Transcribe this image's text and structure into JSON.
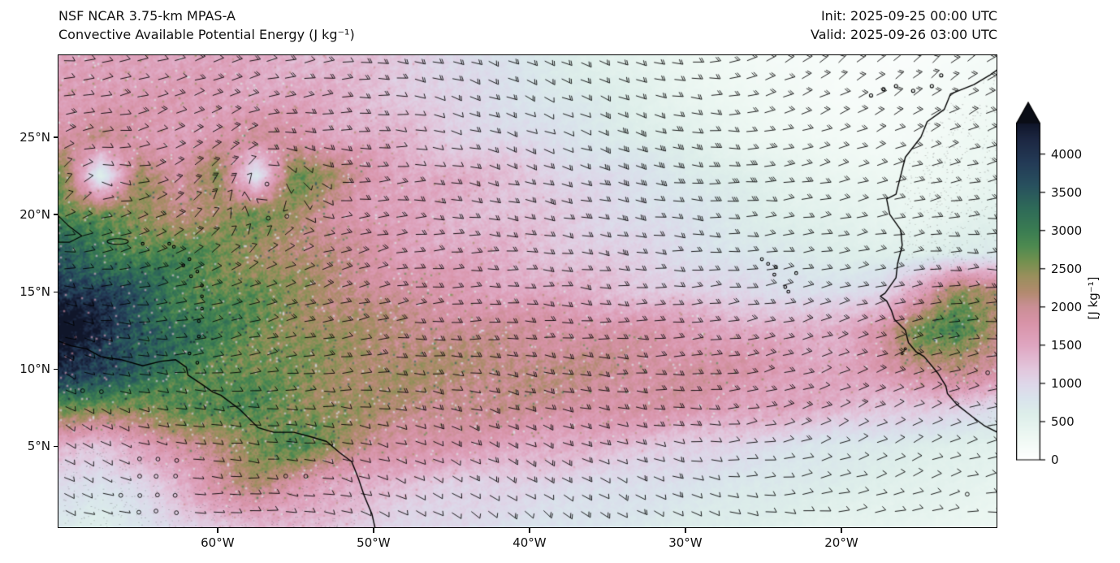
{
  "header": {
    "model": "NSF NCAR 3.75-km MPAS-A",
    "variable": "Convective Available Potential Energy (J kg⁻¹)",
    "init": "Init: 2025-09-25 00:00 UTC",
    "valid": "Valid: 2025-09-26 03:00 UTC"
  },
  "axes": {
    "lon_tick_labels": [
      "60°W",
      "50°W",
      "40°W",
      "30°W",
      "20°W"
    ],
    "lon_tick_values": [
      -60,
      -50,
      -40,
      -30,
      -20
    ],
    "lat_tick_labels": [
      "25°N",
      "20°N",
      "15°N",
      "10°N",
      "5°N"
    ],
    "lat_tick_values": [
      25,
      20,
      15,
      10,
      5
    ],
    "lon_range": [
      -70.2,
      -10.0
    ],
    "lat_range": [
      -0.3,
      30.3
    ]
  },
  "colorbar": {
    "label": "[J kg⁻¹]",
    "tick_values": [
      0,
      500,
      1000,
      1500,
      2000,
      2500,
      3000,
      3500,
      4000
    ],
    "vmin": 0,
    "vmax": 4400,
    "extend": "max",
    "stops": [
      [
        0,
        "#ffffff"
      ],
      [
        300,
        "#eef8f3"
      ],
      [
        600,
        "#ddeeea"
      ],
      [
        800,
        "#d9e4ec"
      ],
      [
        1000,
        "#ded7e9"
      ],
      [
        1200,
        "#e2c6dc"
      ],
      [
        1500,
        "#dfa6c1"
      ],
      [
        1800,
        "#d893a8"
      ],
      [
        2000,
        "#cb8f96"
      ],
      [
        2200,
        "#b28a6f"
      ],
      [
        2400,
        "#9a8f5d"
      ],
      [
        2600,
        "#74904f"
      ],
      [
        2800,
        "#4e8a50"
      ],
      [
        3000,
        "#3b7d52"
      ],
      [
        3300,
        "#2e6a58"
      ],
      [
        3600,
        "#28505e"
      ],
      [
        3900,
        "#233a56"
      ],
      [
        4200,
        "#1c2742"
      ],
      [
        4400,
        "#10162a"
      ]
    ]
  },
  "chart_data": {
    "type": "heatmap",
    "title": "Convective Available Potential Energy",
    "units": "J kg⁻¹",
    "model": "NSF NCAR 3.75-km MPAS-A",
    "init_time": "2025-09-25 00:00 UTC",
    "valid_time": "2025-09-26 03:00 UTC",
    "overlays": [
      "10 m wind barbs",
      "calm-wind circles",
      "coastlines"
    ],
    "colorbar_ticks": [
      0,
      500,
      1000,
      1500,
      2000,
      2500,
      3000,
      3500,
      4000
    ],
    "grid": {
      "lon": [
        -70,
        -67.5,
        -65,
        -62.5,
        -60,
        -57.5,
        -55,
        -52.5,
        -50,
        -47.5,
        -45,
        -42.5,
        -40,
        -37.5,
        -35,
        -32.5,
        -30,
        -27.5,
        -25,
        -22.5,
        -20,
        -17.5,
        -15,
        -12.5,
        -10
      ],
      "lat": [
        30,
        27.5,
        25,
        22.5,
        20,
        17.5,
        15,
        12.5,
        10,
        7.5,
        5,
        2.5,
        0
      ],
      "cape_jkg": [
        [
          1500,
          1550,
          1600,
          1550,
          1500,
          1450,
          1400,
          1300,
          1200,
          1100,
          1000,
          850,
          700,
          600,
          500,
          400,
          300,
          250,
          200,
          150,
          120,
          100,
          100,
          150,
          200
        ],
        [
          1650,
          1700,
          1650,
          1600,
          1600,
          1550,
          1500,
          1400,
          1300,
          1150,
          1000,
          900,
          800,
          700,
          600,
          500,
          400,
          300,
          250,
          200,
          150,
          130,
          150,
          200,
          250
        ],
        [
          1800,
          2000,
          1700,
          1650,
          1700,
          1900,
          1800,
          1500,
          1400,
          1300,
          1100,
          1000,
          900,
          800,
          700,
          600,
          500,
          400,
          300,
          250,
          200,
          180,
          200,
          250,
          300
        ],
        [
          2600,
          500,
          2400,
          1700,
          2500,
          700,
          2700,
          2200,
          1700,
          1500,
          1400,
          1300,
          1200,
          1000,
          900,
          800,
          700,
          600,
          500,
          400,
          350,
          300,
          280,
          320,
          400
        ],
        [
          2800,
          2600,
          2400,
          2200,
          2300,
          2600,
          2300,
          1900,
          1600,
          1500,
          1400,
          1300,
          1200,
          1100,
          1000,
          900,
          800,
          700,
          600,
          500,
          450,
          400,
          380,
          420,
          500
        ],
        [
          3400,
          3100,
          2900,
          2800,
          2600,
          2400,
          2200,
          2000,
          1800,
          1600,
          1500,
          1400,
          1300,
          1200,
          1100,
          1000,
          900,
          800,
          700,
          650,
          600,
          560,
          520,
          620,
          720
        ],
        [
          4200,
          3800,
          3400,
          3000,
          2800,
          2600,
          2400,
          2200,
          2000,
          1800,
          1700,
          1600,
          1500,
          1400,
          1300,
          1200,
          1100,
          1000,
          950,
          900,
          850,
          950,
          1600,
          2500,
          2100
        ],
        [
          4600,
          4200,
          3600,
          3200,
          2900,
          2700,
          2500,
          2300,
          2200,
          2100,
          2000,
          1950,
          1900,
          1850,
          1800,
          1750,
          1650,
          1550,
          1450,
          1350,
          1450,
          1850,
          2600,
          2850,
          2250
        ],
        [
          4300,
          3900,
          3300,
          3000,
          2800,
          2600,
          2500,
          2400,
          2300,
          2250,
          2200,
          2150,
          2100,
          2050,
          2000,
          1950,
          1900,
          1800,
          1700,
          1600,
          1500,
          1650,
          2050,
          2200,
          1800
        ],
        [
          2600,
          2500,
          2600,
          2800,
          2700,
          2850,
          2600,
          2400,
          2250,
          2100,
          2050,
          2000,
          1950,
          1900,
          1850,
          1800,
          1750,
          1650,
          1550,
          1450,
          1350,
          1250,
          1150,
          1050,
          950
        ],
        [
          1400,
          1200,
          1500,
          1800,
          2200,
          2600,
          2800,
          2400,
          2000,
          1800,
          1700,
          1600,
          1500,
          1400,
          1300,
          1200,
          1100,
          1000,
          900,
          800,
          700,
          650,
          600,
          550,
          500
        ],
        [
          900,
          800,
          1000,
          1400,
          1800,
          2200,
          1800,
          1500,
          1300,
          1200,
          1100,
          1050,
          1000,
          950,
          900,
          850,
          800,
          750,
          700,
          650,
          600,
          550,
          500,
          450,
          400
        ],
        [
          700,
          600,
          800,
          1000,
          1200,
          1400,
          1300,
          1200,
          1100,
          1000,
          950,
          900,
          850,
          800,
          750,
          700,
          650,
          600,
          550,
          500,
          450,
          420,
          390,
          360,
          330
        ]
      ]
    }
  },
  "geo": {
    "coast_south_america": [
      [
        -70.2,
        11.8
      ],
      [
        -69.4,
        11.5
      ],
      [
        -68.4,
        11.3
      ],
      [
        -67.5,
        10.8
      ],
      [
        -66.2,
        10.6
      ],
      [
        -64.8,
        10.2
      ],
      [
        -63.6,
        10.5
      ],
      [
        -62.7,
        10.6
      ],
      [
        -62.0,
        10.1
      ],
      [
        -61.9,
        9.6
      ],
      [
        -61.0,
        9.0
      ],
      [
        -60.3,
        8.5
      ],
      [
        -59.8,
        8.3
      ],
      [
        -58.6,
        7.4
      ],
      [
        -57.4,
        6.2
      ],
      [
        -56.4,
        5.9
      ],
      [
        -55.1,
        5.9
      ],
      [
        -54.0,
        5.6
      ],
      [
        -53.0,
        5.3
      ],
      [
        -52.2,
        4.6
      ],
      [
        -51.4,
        4.0
      ],
      [
        -51.0,
        3.0
      ],
      [
        -50.6,
        1.8
      ],
      [
        -50.1,
        0.6
      ],
      [
        -49.9,
        -0.3
      ]
    ],
    "coast_africa": [
      [
        -9.5,
        30.3
      ],
      [
        -9.8,
        29.5
      ],
      [
        -10.5,
        29.0
      ],
      [
        -11.5,
        28.4
      ],
      [
        -13.0,
        27.8
      ],
      [
        -13.4,
        26.8
      ],
      [
        -14.5,
        26.0
      ],
      [
        -14.9,
        25.0
      ],
      [
        -15.9,
        23.7
      ],
      [
        -16.2,
        22.5
      ],
      [
        -16.5,
        21.3
      ],
      [
        -17.1,
        21.0
      ],
      [
        -16.9,
        20.0
      ],
      [
        -16.2,
        19.0
      ],
      [
        -16.1,
        18.0
      ],
      [
        -16.4,
        16.8
      ],
      [
        -16.5,
        15.9
      ],
      [
        -17.2,
        14.9
      ],
      [
        -17.5,
        14.7
      ],
      [
        -17.1,
        14.4
      ],
      [
        -16.8,
        13.8
      ],
      [
        -16.6,
        13.2
      ],
      [
        -15.9,
        12.5
      ],
      [
        -15.7,
        11.7
      ],
      [
        -15.2,
        11.1
      ],
      [
        -14.7,
        10.8
      ],
      [
        -13.8,
        9.7
      ],
      [
        -13.3,
        8.9
      ],
      [
        -13.2,
        8.4
      ],
      [
        -12.6,
        7.7
      ],
      [
        -11.6,
        6.9
      ],
      [
        -10.8,
        6.3
      ],
      [
        -10.0,
        5.9
      ]
    ],
    "islands": {
      "lesser_antilles": [
        [
          -61.8,
          11.0
        ],
        [
          -61.3,
          10.4
        ],
        [
          -61.2,
          12.1
        ],
        [
          -61.2,
          13.1
        ],
        [
          -61.0,
          13.9
        ],
        [
          -61.0,
          14.7
        ],
        [
          -61.0,
          15.4
        ],
        [
          -61.3,
          16.3
        ],
        [
          -61.7,
          16.0
        ],
        [
          -61.8,
          17.1
        ],
        [
          -62.2,
          16.7
        ],
        [
          -62.8,
          17.9
        ],
        [
          -63.1,
          18.1
        ],
        [
          -64.8,
          18.1
        ]
      ],
      "puerto_rico": [
        [
          -67.1,
          18.4
        ],
        [
          -66.5,
          18.45
        ],
        [
          -65.7,
          18.3
        ],
        [
          -65.9,
          18.1
        ]
      ],
      "hispaniola_fragment": [
        [
          -70.2,
          19.9
        ],
        [
          -69.6,
          19.3
        ],
        [
          -68.7,
          18.6
        ],
        [
          -69.5,
          18.2
        ],
        [
          -70.2,
          18.2
        ]
      ],
      "cape_verde": [
        [
          -25.1,
          17.1
        ],
        [
          -24.7,
          16.8
        ],
        [
          -24.2,
          16.6
        ],
        [
          -24.3,
          16.1
        ],
        [
          -23.6,
          15.3
        ],
        [
          -23.4,
          15.0
        ],
        [
          -22.9,
          16.2
        ]
      ],
      "canary": [
        [
          -18.1,
          27.7
        ],
        [
          -17.3,
          28.1
        ],
        [
          -16.5,
          28.3
        ],
        [
          -15.4,
          28.0
        ],
        [
          -14.2,
          28.3
        ],
        [
          -13.6,
          29.0
        ]
      ],
      "bijagos": [
        [
          -15.9,
          11.3
        ],
        [
          -16.1,
          11.0
        ]
      ]
    }
  }
}
